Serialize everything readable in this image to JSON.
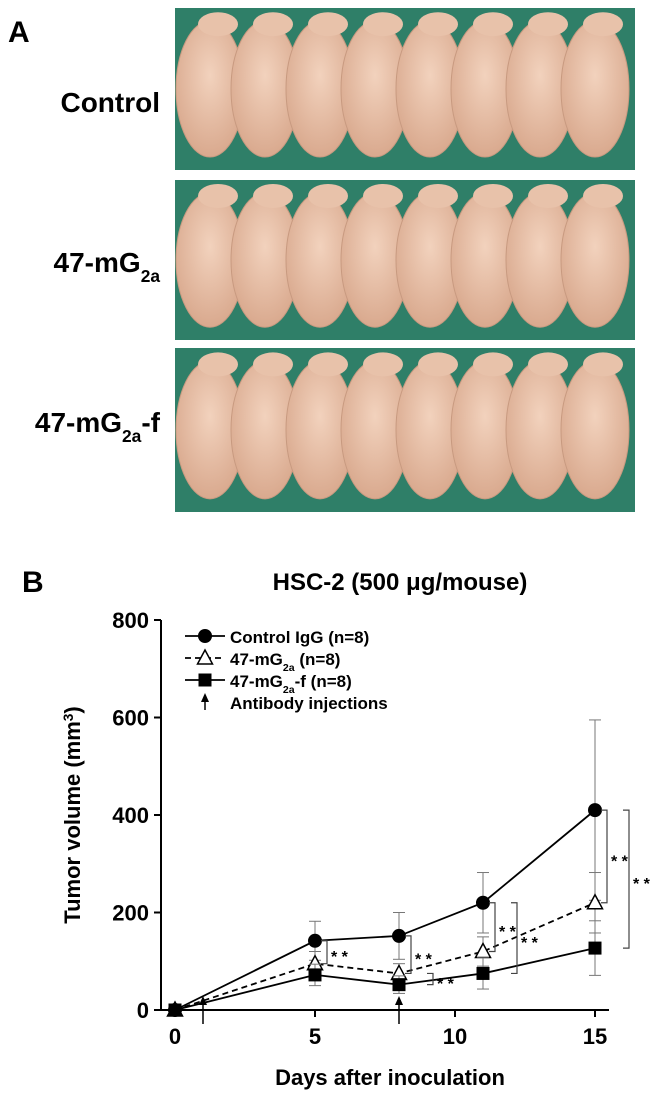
{
  "panel_a": {
    "label": "A",
    "rows": [
      {
        "parts": [
          "Control"
        ]
      },
      {
        "parts": [
          "47-mG",
          "2a"
        ],
        "script": "sub"
      },
      {
        "parts": [
          "47-mG",
          "2a",
          "-f"
        ],
        "script": "sub"
      }
    ]
  },
  "panel_b_label": "B",
  "chart_data": {
    "type": "line",
    "title": "HSC-2 (500 μg/mouse)",
    "x_label": "Days after inoculation",
    "y_label": {
      "parts": [
        "Tumor volume (mm",
        "3",
        ")"
      ],
      "script": "sup"
    },
    "x": [
      0,
      5,
      8,
      11,
      15
    ],
    "series": [
      {
        "name": {
          "parts": [
            "Control IgG (n=8)"
          ]
        },
        "color": "#000",
        "marker": "circle",
        "dash": false,
        "values": [
          0,
          142,
          152,
          220,
          410
        ],
        "errors": [
          0,
          40,
          48,
          62,
          185
        ]
      },
      {
        "name": {
          "parts": [
            "47-mG",
            "2a",
            " (n=8)"
          ],
          "script": "sub"
        },
        "color": "#000",
        "marker": "open-triangle",
        "dash": true,
        "values": [
          0,
          95,
          75,
          120,
          220
        ],
        "errors": [
          0,
          25,
          20,
          30,
          62
        ]
      },
      {
        "name": {
          "parts": [
            "47-mG",
            "2a",
            "-f (n=8)"
          ],
          "script": "sub"
        },
        "color": "#000",
        "marker": "square",
        "dash": false,
        "values": [
          0,
          72,
          52,
          75,
          127
        ],
        "errors": [
          0,
          22,
          18,
          32,
          56
        ]
      }
    ],
    "injections": {
      "name": "Antibody injections",
      "x": [
        1,
        8
      ]
    },
    "brackets": [
      {
        "x": 5,
        "between": [
          0,
          1
        ],
        "label": "* *"
      },
      {
        "x": 8,
        "between": [
          0,
          1
        ],
        "label": "* *"
      },
      {
        "x": 8,
        "between": [
          1,
          2
        ],
        "label": "* *"
      },
      {
        "x": 11,
        "between": [
          0,
          1
        ],
        "label": "* *"
      },
      {
        "x": 11,
        "between": [
          0,
          2
        ],
        "label": "* *"
      },
      {
        "x": 15,
        "between": [
          0,
          1
        ],
        "label": "* *"
      },
      {
        "x": 15,
        "between": [
          0,
          2
        ],
        "label": "* *"
      }
    ],
    "xlim": [
      -0.5,
      15.5
    ],
    "ylim": [
      0,
      800
    ],
    "xticks": [
      0,
      5,
      10,
      15
    ],
    "yticks": [
      0,
      200,
      400,
      600,
      800
    ]
  }
}
